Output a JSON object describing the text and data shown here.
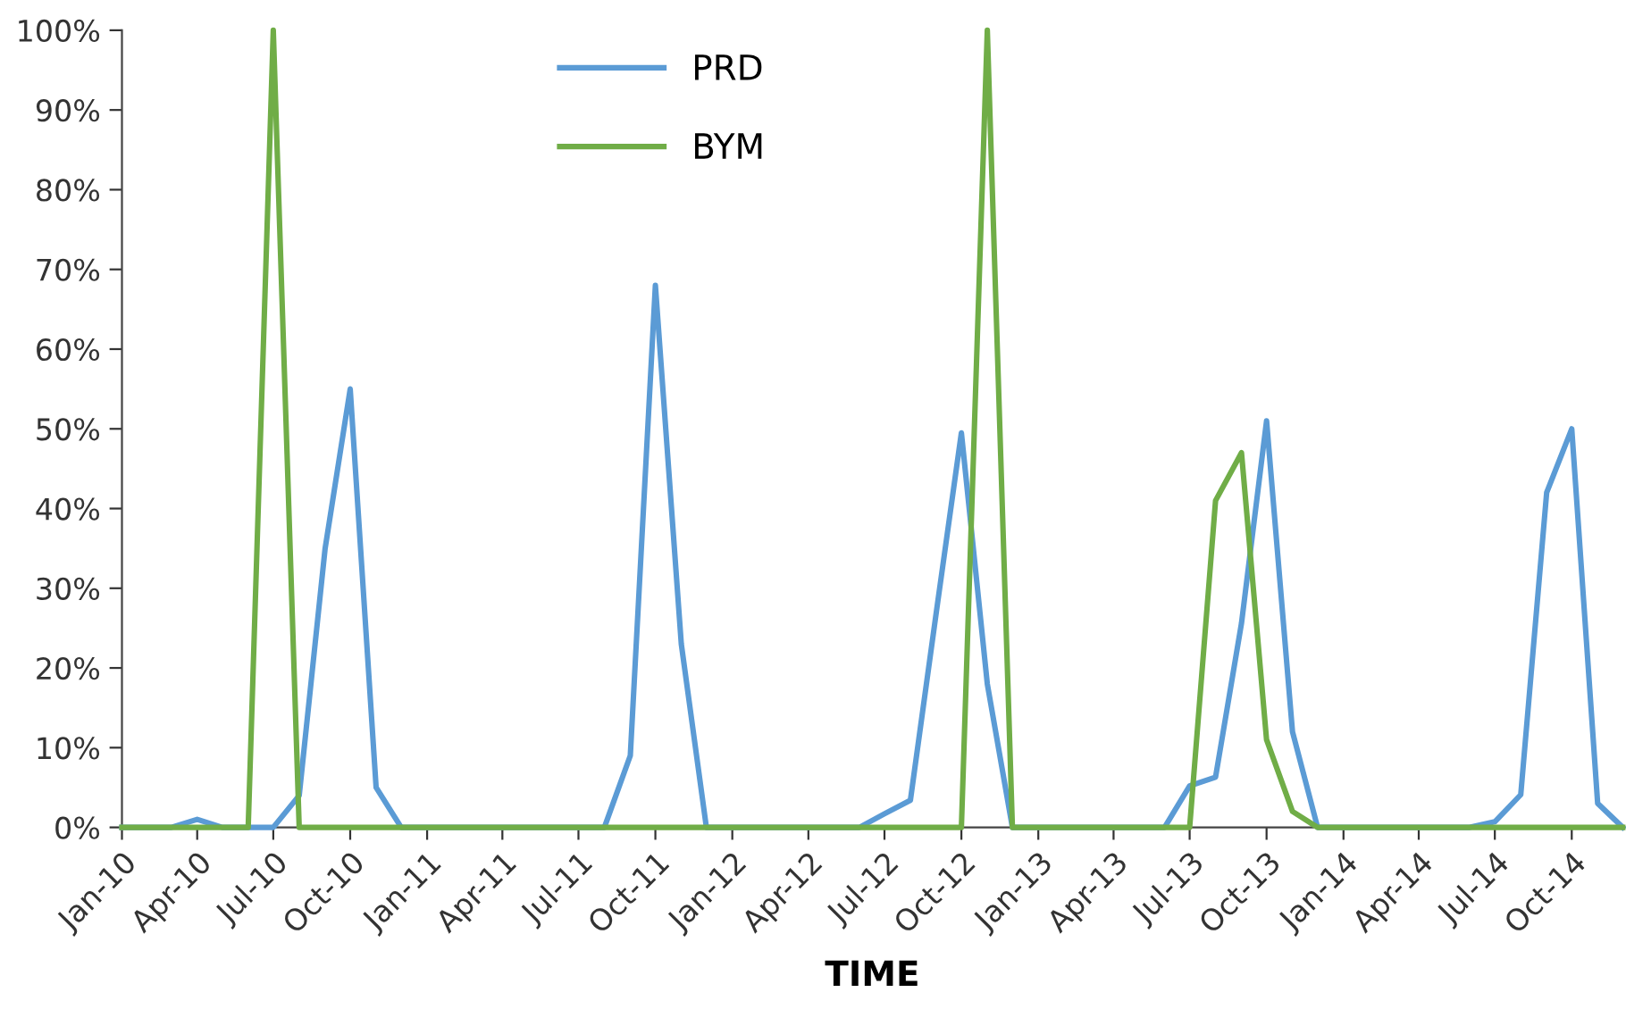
{
  "chart_data": {
    "type": "line",
    "xlabel": "TIME",
    "x": [
      "2010-01",
      "2010-02",
      "2010-03",
      "2010-04",
      "2010-05",
      "2010-06",
      "2010-07",
      "2010-08",
      "2010-09",
      "2010-10",
      "2010-11",
      "2010-12",
      "2011-01",
      "2011-02",
      "2011-03",
      "2011-04",
      "2011-05",
      "2011-06",
      "2011-07",
      "2011-08",
      "2011-09",
      "2011-10",
      "2011-11",
      "2011-12",
      "2012-01",
      "2012-02",
      "2012-03",
      "2012-04",
      "2012-05",
      "2012-06",
      "2012-07",
      "2012-08",
      "2012-09",
      "2012-10",
      "2012-11",
      "2012-12",
      "2013-01",
      "2013-02",
      "2013-03",
      "2013-04",
      "2013-05",
      "2013-06",
      "2013-07",
      "2013-08",
      "2013-09",
      "2013-10",
      "2013-11",
      "2013-12",
      "2014-01",
      "2014-02",
      "2014-03",
      "2014-04",
      "2014-05",
      "2014-06",
      "2014-07",
      "2014-08",
      "2014-09",
      "2014-10",
      "2014-11",
      "2014-12"
    ],
    "series": [
      {
        "name": "PRD",
        "color": "#5b9bd5",
        "values": [
          0,
          0,
          0,
          1,
          0,
          0,
          0,
          4,
          35,
          55,
          5,
          0,
          0,
          0,
          0,
          0,
          0,
          0,
          0,
          0,
          9,
          68,
          23,
          0,
          0,
          0,
          0,
          0,
          0,
          0,
          1.7,
          3.4,
          27,
          49.5,
          18,
          0,
          0,
          0,
          0,
          0,
          0,
          0,
          5.2,
          6.3,
          25.6,
          51,
          12,
          0,
          0,
          0,
          0,
          0,
          0,
          0,
          0.7,
          4.1,
          42,
          50,
          3,
          0
        ]
      },
      {
        "name": "BYM",
        "color": "#70ad47",
        "values": [
          0,
          0,
          0,
          0,
          0,
          0,
          100,
          0,
          0,
          0,
          0,
          0,
          0,
          0,
          0,
          0,
          0,
          0,
          0,
          0,
          0,
          0,
          0,
          0,
          0,
          0,
          0,
          0,
          0,
          0,
          0,
          0,
          0,
          0,
          100,
          0,
          0,
          0,
          0,
          0,
          0,
          0,
          0,
          41,
          47,
          11,
          2,
          0,
          0,
          0,
          0,
          0,
          0,
          0,
          0,
          0,
          0,
          0,
          0,
          0
        ]
      }
    ],
    "xlim": [
      "2010-01",
      "2014-12"
    ],
    "xticks": [
      {
        "value": "2010-01",
        "label": "Jan-10"
      },
      {
        "value": "2010-04",
        "label": "Apr-10"
      },
      {
        "value": "2010-07",
        "label": "Jul-10"
      },
      {
        "value": "2010-10",
        "label": "Oct-10"
      },
      {
        "value": "2011-01",
        "label": "Jan-11"
      },
      {
        "value": "2011-04",
        "label": "Apr-11"
      },
      {
        "value": "2011-07",
        "label": "Jul-11"
      },
      {
        "value": "2011-10",
        "label": "Oct-11"
      },
      {
        "value": "2012-01",
        "label": "Jan-12"
      },
      {
        "value": "2012-04",
        "label": "Apr-12"
      },
      {
        "value": "2012-07",
        "label": "Jul-12"
      },
      {
        "value": "2012-10",
        "label": "Oct-12"
      },
      {
        "value": "2013-01",
        "label": "Jan-13"
      },
      {
        "value": "2013-04",
        "label": "Apr-13"
      },
      {
        "value": "2013-07",
        "label": "Jul-13"
      },
      {
        "value": "2013-10",
        "label": "Oct-13"
      },
      {
        "value": "2014-01",
        "label": "Jan-14"
      },
      {
        "value": "2014-04",
        "label": "Apr-14"
      },
      {
        "value": "2014-07",
        "label": "Jul-14"
      },
      {
        "value": "2014-10",
        "label": "Oct-14"
      }
    ],
    "ylim": [
      0,
      100
    ],
    "yticks": [
      {
        "value": 0,
        "label": "0%"
      },
      {
        "value": 10,
        "label": "10%"
      },
      {
        "value": 20,
        "label": "20%"
      },
      {
        "value": 30,
        "label": "30%"
      },
      {
        "value": 40,
        "label": "40%"
      },
      {
        "value": 50,
        "label": "50%"
      },
      {
        "value": 60,
        "label": "60%"
      },
      {
        "value": 70,
        "label": "70%"
      },
      {
        "value": 80,
        "label": "80%"
      },
      {
        "value": 90,
        "label": "90%"
      },
      {
        "value": 100,
        "label": "100%"
      }
    ],
    "grid": false,
    "legend": "top",
    "marker": "none",
    "line_style": "solid"
  }
}
